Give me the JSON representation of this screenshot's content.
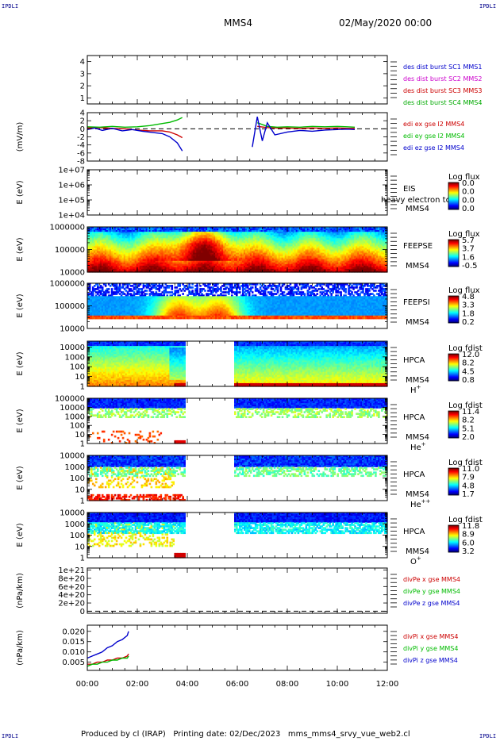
{
  "corner_label": "IPDLI",
  "header": {
    "spacecraft": "MMS4",
    "datetime": "02/May/2020 00:00"
  },
  "footer": "Produced by cl (IRAP)   Printing date: 02/Dec/2023   mms_mms4_srvy_vue_web2.cl",
  "colors": {
    "mms1": "#0000cc",
    "mms2": "#cc00cc",
    "mms3": "#cc0000",
    "mms4": "#00aa00",
    "x": "#cc0000",
    "y": "#00bb00",
    "z": "#0000cc"
  },
  "chart_data": [
    {
      "type": "line",
      "panel": "dist-burst",
      "ylabel": "",
      "ylim": [
        0.5,
        4.5
      ],
      "yticks": [
        "4",
        "3",
        "2",
        "1"
      ],
      "legend": [
        "des dist burst SC1 MMS1",
        "des dist burst SC2 MMS2",
        "des dist burst SC3 MMS3",
        "des dist burst SC4 MMS4"
      ],
      "series": []
    },
    {
      "type": "line",
      "panel": "electric-field",
      "ylabel": "(mV/m)",
      "ylim": [
        -8,
        4
      ],
      "yticks": [
        "4",
        "2",
        "0",
        "-2",
        "-4",
        "-6",
        "-8"
      ],
      "legend": [
        "edi ex gse l2 MMS4",
        "edi ey gse l2 MMS4",
        "edi ez gse l2 MMS4"
      ],
      "series": [
        {
          "name": "edi ex gse l2 MMS4",
          "segments": [
            [
              [
                0.0,
                0.2
              ],
              [
                0.5,
                0.3
              ],
              [
                1.0,
                0.1
              ],
              [
                1.5,
                0.0
              ],
              [
                2.0,
                -0.3
              ],
              [
                2.5,
                -0.5
              ],
              [
                3.0,
                -0.5
              ],
              [
                3.3,
                -0.8
              ],
              [
                3.6,
                -1.5
              ],
              [
                3.8,
                -2.2
              ]
            ],
            [
              [
                6.8,
                0.6
              ],
              [
                7.2,
                0.3
              ],
              [
                7.6,
                0.2
              ],
              [
                8.0,
                0.2
              ],
              [
                8.5,
                0.1
              ],
              [
                9.0,
                0.2
              ],
              [
                9.5,
                0.1
              ],
              [
                10.0,
                0.2
              ],
              [
                10.4,
                0.1
              ],
              [
                10.7,
                0.1
              ]
            ]
          ]
        },
        {
          "name": "edi ey gse l2 MMS4",
          "segments": [
            [
              [
                0.0,
                0.5
              ],
              [
                0.5,
                0.4
              ],
              [
                1.0,
                0.6
              ],
              [
                1.5,
                0.4
              ],
              [
                2.0,
                0.5
              ],
              [
                2.5,
                0.8
              ],
              [
                3.0,
                1.3
              ],
              [
                3.3,
                1.6
              ],
              [
                3.6,
                2.2
              ],
              [
                3.8,
                2.8
              ]
            ],
            [
              [
                6.8,
                1.5
              ],
              [
                7.2,
                0.6
              ],
              [
                7.6,
                0.4
              ],
              [
                8.0,
                0.5
              ],
              [
                8.5,
                0.4
              ],
              [
                9.0,
                0.6
              ],
              [
                9.5,
                0.5
              ],
              [
                10.0,
                0.6
              ],
              [
                10.4,
                0.5
              ],
              [
                10.7,
                0.4
              ]
            ]
          ]
        },
        {
          "name": "edi ez gse l2 MMS4",
          "segments": [
            [
              [
                0.0,
                -0.2
              ],
              [
                0.3,
                0.2
              ],
              [
                0.6,
                -0.4
              ],
              [
                1.0,
                0.1
              ],
              [
                1.4,
                -0.5
              ],
              [
                1.8,
                -0.2
              ],
              [
                2.2,
                -0.6
              ],
              [
                2.6,
                -0.9
              ],
              [
                3.0,
                -1.2
              ],
              [
                3.3,
                -2.0
              ],
              [
                3.6,
                -3.5
              ],
              [
                3.8,
                -5.5
              ]
            ],
            [
              [
                6.6,
                -4.5
              ],
              [
                6.8,
                3.0
              ],
              [
                7.0,
                -3.0
              ],
              [
                7.2,
                1.5
              ],
              [
                7.5,
                -1.5
              ],
              [
                8.0,
                -0.8
              ],
              [
                8.5,
                -0.4
              ],
              [
                9.0,
                -0.6
              ],
              [
                9.5,
                -0.3
              ],
              [
                10.0,
                -0.2
              ],
              [
                10.4,
                -0.1
              ],
              [
                10.7,
                -0.2
              ]
            ]
          ]
        }
      ]
    },
    {
      "type": "heatmap",
      "panel": "eis",
      "ylabel": "E (eV)",
      "ylim": [
        10000,
        10000000
      ],
      "ylog": true,
      "yticks": [
        "1e+07",
        "1e+06",
        "1e+05",
        "1e+04"
      ],
      "instrument": "EIS",
      "overlay": "heavy electron to",
      "spacecraft": "MMS4",
      "colorbar_title": "Log flux",
      "colorbar_ticks": [
        "0.0",
        "0.0",
        "0.0",
        "0.0"
      ]
    },
    {
      "type": "heatmap",
      "panel": "feepse",
      "ylabel": "E (eV)",
      "ylim": [
        10000,
        1000000
      ],
      "ylog": true,
      "yticks": [
        "1000000",
        "100000",
        "10000"
      ],
      "instrument": "FEEPSE",
      "spacecraft": "MMS4",
      "colorbar_title": "Log flux",
      "colorbar_ticks": [
        "5.7",
        "3.7",
        "1.6",
        "-0.5"
      ]
    },
    {
      "type": "heatmap",
      "panel": "feepsi",
      "ylabel": "E (eV)",
      "ylim": [
        10000,
        1000000
      ],
      "ylog": true,
      "yticks": [
        "1000000",
        "100000",
        "10000"
      ],
      "instrument": "FEEPSI",
      "spacecraft": "MMS4",
      "colorbar_title": "Log flux",
      "colorbar_ticks": [
        "4.8",
        "3.3",
        "1.8",
        "0.2"
      ]
    },
    {
      "type": "heatmap",
      "panel": "hpca-h",
      "ylabel": "E (eV)",
      "ylim": [
        1,
        40000
      ],
      "ylog": true,
      "yticks": [
        "10000",
        "1000",
        "100",
        "10",
        "1"
      ],
      "instrument": "HPCA",
      "spacecraft": "MMS4",
      "species": "H",
      "charge": "+",
      "colorbar_title": "Log fdist",
      "colorbar_ticks": [
        "12.0",
        "8.2",
        "4.5",
        "0.8"
      ]
    },
    {
      "type": "heatmap",
      "panel": "hpca-he",
      "ylabel": "E (eV)",
      "ylim": [
        1,
        100000
      ],
      "ylog": true,
      "yticks": [
        "100000",
        "10000",
        "1000",
        "100",
        "10",
        "1"
      ],
      "instrument": "HPCA",
      "spacecraft": "MMS4",
      "species": "He",
      "charge": "+",
      "colorbar_title": "Log fdist",
      "colorbar_ticks": [
        "11.4",
        "8.2",
        "5.1",
        "2.0"
      ]
    },
    {
      "type": "heatmap",
      "panel": "hpca-hepp",
      "ylabel": "E (eV)",
      "ylim": [
        1,
        10000
      ],
      "ylog": true,
      "yticks": [
        "10000",
        "1000",
        "100",
        "10",
        "1"
      ],
      "instrument": "HPCA",
      "spacecraft": "MMS4",
      "species": "He",
      "charge": "++",
      "colorbar_title": "Log fdist",
      "colorbar_ticks": [
        "11.0",
        "7.9",
        "4.8",
        "1.7"
      ]
    },
    {
      "type": "heatmap",
      "panel": "hpca-o",
      "ylabel": "E (eV)",
      "ylim": [
        1,
        10000
      ],
      "ylog": true,
      "yticks": [
        "10000",
        "1000",
        "100",
        "10",
        "1"
      ],
      "instrument": "HPCA",
      "spacecraft": "MMS4",
      "species": "O",
      "charge": "+",
      "colorbar_title": "Log fdist",
      "colorbar_ticks": [
        "11.8",
        "8.9",
        "6.0",
        "3.2"
      ]
    },
    {
      "type": "line",
      "panel": "divpe",
      "ylabel": "(nPa/km)",
      "ylim": [
        -5e+19,
        1.05e+21
      ],
      "yticks": [
        "1e+21",
        "8e+20",
        "6e+20",
        "4e+20",
        "2e+20",
        "0"
      ],
      "legend": [
        "divPe x gse MMS4",
        "divPe y gse MMS4",
        "divPe z gse MMS4"
      ],
      "series": []
    },
    {
      "type": "line",
      "panel": "divpi",
      "ylabel": "(nPa/km)",
      "ylim": [
        0.001,
        0.023
      ],
      "yticks": [
        "0.020",
        "0.015",
        "0.010",
        "0.005"
      ],
      "legend": [
        "divPi x gse MMS4",
        "divPi y gse MMS4",
        "divPi z gse MMS4"
      ],
      "series": [
        {
          "name": "divPi x gse MMS4",
          "x": [
            0.0,
            0.2,
            0.4,
            0.6,
            0.8,
            1.0,
            1.2,
            1.4,
            1.6,
            1.65
          ],
          "y": [
            0.004,
            0.004,
            0.005,
            0.005,
            0.006,
            0.006,
            0.007,
            0.007,
            0.008,
            0.009
          ]
        },
        {
          "name": "divPi y gse MMS4",
          "x": [
            0.0,
            0.2,
            0.4,
            0.6,
            0.8,
            1.0,
            1.2,
            1.4,
            1.6,
            1.65
          ],
          "y": [
            0.003,
            0.004,
            0.004,
            0.005,
            0.005,
            0.006,
            0.006,
            0.007,
            0.007,
            0.008
          ]
        },
        {
          "name": "divPi z gse MMS4",
          "x": [
            0.0,
            0.2,
            0.4,
            0.6,
            0.8,
            1.0,
            1.2,
            1.4,
            1.6,
            1.65
          ],
          "y": [
            0.007,
            0.008,
            0.009,
            0.01,
            0.012,
            0.013,
            0.015,
            0.016,
            0.018,
            0.02
          ]
        }
      ]
    }
  ],
  "time_axis": {
    "labels": [
      "00:00",
      "02:00",
      "04:00",
      "06:00",
      "08:00",
      "10:00",
      "12:00"
    ],
    "range_hours": [
      0,
      12
    ]
  }
}
